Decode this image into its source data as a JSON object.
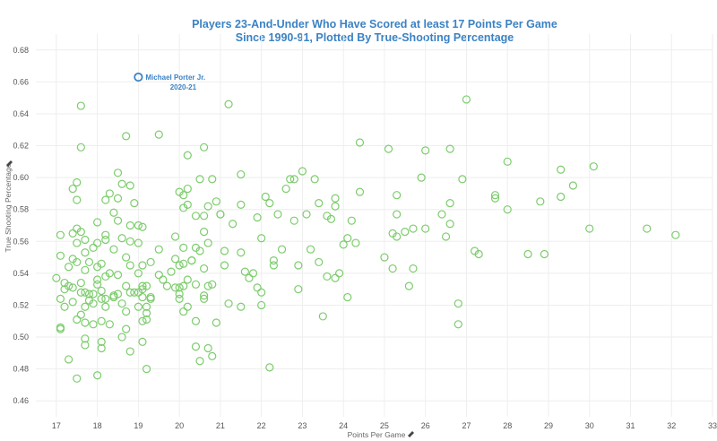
{
  "chart_data": {
    "type": "scatter",
    "title_line1": "Players 23-And-Under Who Have Scored at least 17 Points Per Game",
    "title_line2": "Since 1990-91, Plotted By True-Shooting Percentage",
    "xlabel": "Points Per Game",
    "ylabel": "True Shooting Percentage",
    "xlim": [
      16.5,
      33
    ],
    "ylim": [
      0.45,
      0.69
    ],
    "xticks": [
      17,
      18,
      19,
      20,
      21,
      22,
      23,
      24,
      25,
      26,
      27,
      28,
      29,
      30,
      31,
      32,
      33
    ],
    "yticks": [
      0.46,
      0.48,
      0.5,
      0.52,
      0.54,
      0.56,
      0.58,
      0.6,
      0.62,
      0.64,
      0.66,
      0.68
    ],
    "grid": true,
    "colors": {
      "points": "#7ccc6c",
      "highlight": "#3b82c4"
    },
    "highlight": {
      "name": "Michael Porter Jr.",
      "season": "2020-21",
      "x": 19.0,
      "y": 0.663
    },
    "points": [
      [
        17.0,
        0.537
      ],
      [
        17.1,
        0.564
      ],
      [
        17.1,
        0.551
      ],
      [
        17.1,
        0.524
      ],
      [
        17.1,
        0.506
      ],
      [
        17.1,
        0.505
      ],
      [
        17.2,
        0.534
      ],
      [
        17.2,
        0.53
      ],
      [
        17.2,
        0.519
      ],
      [
        17.3,
        0.544
      ],
      [
        17.3,
        0.532
      ],
      [
        17.3,
        0.486
      ],
      [
        17.4,
        0.593
      ],
      [
        17.4,
        0.565
      ],
      [
        17.4,
        0.549
      ],
      [
        17.4,
        0.531
      ],
      [
        17.4,
        0.522
      ],
      [
        17.5,
        0.597
      ],
      [
        17.5,
        0.586
      ],
      [
        17.5,
        0.568
      ],
      [
        17.5,
        0.559
      ],
      [
        17.5,
        0.547
      ],
      [
        17.5,
        0.511
      ],
      [
        17.5,
        0.474
      ],
      [
        17.6,
        0.645
      ],
      [
        17.6,
        0.619
      ],
      [
        17.6,
        0.566
      ],
      [
        17.6,
        0.534
      ],
      [
        17.6,
        0.528
      ],
      [
        17.6,
        0.514
      ],
      [
        17.7,
        0.561
      ],
      [
        17.7,
        0.553
      ],
      [
        17.7,
        0.542
      ],
      [
        17.7,
        0.528
      ],
      [
        17.7,
        0.519
      ],
      [
        17.7,
        0.509
      ],
      [
        17.7,
        0.499
      ],
      [
        17.7,
        0.495
      ],
      [
        17.8,
        0.547
      ],
      [
        17.8,
        0.527
      ],
      [
        17.8,
        0.523
      ],
      [
        17.9,
        0.556
      ],
      [
        17.9,
        0.527
      ],
      [
        17.9,
        0.521
      ],
      [
        17.9,
        0.508
      ],
      [
        18.0,
        0.572
      ],
      [
        18.0,
        0.559
      ],
      [
        18.0,
        0.544
      ],
      [
        18.0,
        0.536
      ],
      [
        18.0,
        0.533
      ],
      [
        18.0,
        0.476
      ],
      [
        18.1,
        0.546
      ],
      [
        18.1,
        0.529
      ],
      [
        18.1,
        0.524
      ],
      [
        18.1,
        0.51
      ],
      [
        18.1,
        0.497
      ],
      [
        18.1,
        0.493
      ],
      [
        18.2,
        0.586
      ],
      [
        18.2,
        0.564
      ],
      [
        18.2,
        0.561
      ],
      [
        18.2,
        0.538
      ],
      [
        18.2,
        0.524
      ],
      [
        18.2,
        0.519
      ],
      [
        18.3,
        0.59
      ],
      [
        18.3,
        0.54
      ],
      [
        18.3,
        0.508
      ],
      [
        18.4,
        0.578
      ],
      [
        18.4,
        0.555
      ],
      [
        18.4,
        0.526
      ],
      [
        18.4,
        0.525
      ],
      [
        18.5,
        0.603
      ],
      [
        18.5,
        0.587
      ],
      [
        18.5,
        0.573
      ],
      [
        18.5,
        0.539
      ],
      [
        18.5,
        0.527
      ],
      [
        18.6,
        0.596
      ],
      [
        18.6,
        0.562
      ],
      [
        18.6,
        0.521
      ],
      [
        18.6,
        0.5
      ],
      [
        18.7,
        0.626
      ],
      [
        18.7,
        0.55
      ],
      [
        18.7,
        0.532
      ],
      [
        18.7,
        0.516
      ],
      [
        18.7,
        0.505
      ],
      [
        18.8,
        0.595
      ],
      [
        18.8,
        0.57
      ],
      [
        18.8,
        0.56
      ],
      [
        18.8,
        0.545
      ],
      [
        18.8,
        0.528
      ],
      [
        18.8,
        0.491
      ],
      [
        18.9,
        0.584
      ],
      [
        18.9,
        0.528
      ],
      [
        19.0,
        0.57
      ],
      [
        19.0,
        0.559
      ],
      [
        19.0,
        0.54
      ],
      [
        19.0,
        0.528
      ],
      [
        19.0,
        0.519
      ],
      [
        19.1,
        0.569
      ],
      [
        19.1,
        0.545
      ],
      [
        19.1,
        0.532
      ],
      [
        19.1,
        0.53
      ],
      [
        19.1,
        0.525
      ],
      [
        19.1,
        0.51
      ],
      [
        19.1,
        0.497
      ],
      [
        19.2,
        0.532
      ],
      [
        19.2,
        0.519
      ],
      [
        19.2,
        0.515
      ],
      [
        19.2,
        0.511
      ],
      [
        19.2,
        0.48
      ],
      [
        19.3,
        0.547
      ],
      [
        19.3,
        0.525
      ],
      [
        19.3,
        0.524
      ],
      [
        19.5,
        0.627
      ],
      [
        19.5,
        0.555
      ],
      [
        19.5,
        0.539
      ],
      [
        19.6,
        0.536
      ],
      [
        19.7,
        0.532
      ],
      [
        19.8,
        0.541
      ],
      [
        19.9,
        0.563
      ],
      [
        19.9,
        0.549
      ],
      [
        19.9,
        0.531
      ],
      [
        20.0,
        0.591
      ],
      [
        20.0,
        0.545
      ],
      [
        20.0,
        0.531
      ],
      [
        20.0,
        0.527
      ],
      [
        20.0,
        0.524
      ],
      [
        20.1,
        0.589
      ],
      [
        20.1,
        0.581
      ],
      [
        20.1,
        0.556
      ],
      [
        20.1,
        0.546
      ],
      [
        20.1,
        0.532
      ],
      [
        20.1,
        0.516
      ],
      [
        20.2,
        0.614
      ],
      [
        20.2,
        0.593
      ],
      [
        20.2,
        0.583
      ],
      [
        20.2,
        0.536
      ],
      [
        20.2,
        0.519
      ],
      [
        20.3,
        0.548
      ],
      [
        20.3,
        0.548
      ],
      [
        20.4,
        0.576
      ],
      [
        20.4,
        0.556
      ],
      [
        20.4,
        0.533
      ],
      [
        20.4,
        0.51
      ],
      [
        20.4,
        0.494
      ],
      [
        20.5,
        0.599
      ],
      [
        20.5,
        0.554
      ],
      [
        20.5,
        0.485
      ],
      [
        20.6,
        0.619
      ],
      [
        20.6,
        0.576
      ],
      [
        20.6,
        0.566
      ],
      [
        20.6,
        0.543
      ],
      [
        20.6,
        0.526
      ],
      [
        20.6,
        0.524
      ],
      [
        20.7,
        0.582
      ],
      [
        20.7,
        0.559
      ],
      [
        20.7,
        0.532
      ],
      [
        20.7,
        0.493
      ],
      [
        20.8,
        0.599
      ],
      [
        20.8,
        0.533
      ],
      [
        20.8,
        0.488
      ],
      [
        20.9,
        0.585
      ],
      [
        20.9,
        0.509
      ],
      [
        21.0,
        0.577
      ],
      [
        21.0,
        0.577
      ],
      [
        21.1,
        0.554
      ],
      [
        21.1,
        0.545
      ],
      [
        21.2,
        0.646
      ],
      [
        21.2,
        0.521
      ],
      [
        21.3,
        0.571
      ],
      [
        21.5,
        0.602
      ],
      [
        21.5,
        0.583
      ],
      [
        21.5,
        0.553
      ],
      [
        21.5,
        0.519
      ],
      [
        21.6,
        0.541
      ],
      [
        21.7,
        0.537
      ],
      [
        21.8,
        0.54
      ],
      [
        21.9,
        0.575
      ],
      [
        21.9,
        0.531
      ],
      [
        22.0,
        0.528
      ],
      [
        22.0,
        0.562
      ],
      [
        22.0,
        0.52
      ],
      [
        22.1,
        0.588
      ],
      [
        22.2,
        0.584
      ],
      [
        22.2,
        0.481
      ],
      [
        22.3,
        0.548
      ],
      [
        22.3,
        0.545
      ],
      [
        22.4,
        0.577
      ],
      [
        22.5,
        0.555
      ],
      [
        22.6,
        0.593
      ],
      [
        22.7,
        0.599
      ],
      [
        22.8,
        0.599
      ],
      [
        22.8,
        0.573
      ],
      [
        22.9,
        0.545
      ],
      [
        22.9,
        0.53
      ],
      [
        23.0,
        0.604
      ],
      [
        23.1,
        0.577
      ],
      [
        23.2,
        0.555
      ],
      [
        23.3,
        0.599
      ],
      [
        23.4,
        0.584
      ],
      [
        23.4,
        0.547
      ],
      [
        23.5,
        0.513
      ],
      [
        23.6,
        0.576
      ],
      [
        23.6,
        0.538
      ],
      [
        23.7,
        0.574
      ],
      [
        23.8,
        0.587
      ],
      [
        23.8,
        0.582
      ],
      [
        23.8,
        0.537
      ],
      [
        23.9,
        0.54
      ],
      [
        24.0,
        0.558
      ],
      [
        24.1,
        0.562
      ],
      [
        24.1,
        0.525
      ],
      [
        24.2,
        0.573
      ],
      [
        24.3,
        0.559
      ],
      [
        24.4,
        0.622
      ],
      [
        24.4,
        0.591
      ],
      [
        25.0,
        0.55
      ],
      [
        25.1,
        0.618
      ],
      [
        25.2,
        0.565
      ],
      [
        25.2,
        0.543
      ],
      [
        25.3,
        0.589
      ],
      [
        25.3,
        0.577
      ],
      [
        25.3,
        0.563
      ],
      [
        25.5,
        0.566
      ],
      [
        25.6,
        0.532
      ],
      [
        25.7,
        0.543
      ],
      [
        25.7,
        0.568
      ],
      [
        25.9,
        0.6
      ],
      [
        26.0,
        0.617
      ],
      [
        26.0,
        0.568
      ],
      [
        26.4,
        0.577
      ],
      [
        26.5,
        0.563
      ],
      [
        26.6,
        0.618
      ],
      [
        26.6,
        0.584
      ],
      [
        26.6,
        0.571
      ],
      [
        26.8,
        0.521
      ],
      [
        26.8,
        0.508
      ],
      [
        26.9,
        0.599
      ],
      [
        27.0,
        0.649
      ],
      [
        27.2,
        0.554
      ],
      [
        27.3,
        0.552
      ],
      [
        27.7,
        0.589
      ],
      [
        27.7,
        0.587
      ],
      [
        28.0,
        0.61
      ],
      [
        28.0,
        0.58
      ],
      [
        28.5,
        0.552
      ],
      [
        28.8,
        0.585
      ],
      [
        28.9,
        0.552
      ],
      [
        29.3,
        0.605
      ],
      [
        29.3,
        0.588
      ],
      [
        29.6,
        0.595
      ],
      [
        30.0,
        0.568
      ],
      [
        30.1,
        0.607
      ],
      [
        31.4,
        0.568
      ],
      [
        32.1,
        0.564
      ]
    ]
  }
}
